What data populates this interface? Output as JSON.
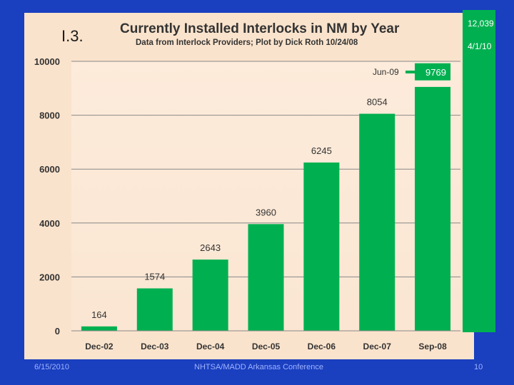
{
  "slide": {
    "label": "I.3.",
    "footer_date": "6/15/2010",
    "footer_conference": "NHTSA/MADD Arkansas Conference",
    "footer_page": "10"
  },
  "annotations": {
    "top_value": "12,039",
    "top_date": "4/1/10",
    "jun09_label": "Jun-09",
    "jun09_value": "9769",
    "top_value_number": 12039,
    "jun09_number": 9769
  },
  "colors": {
    "bar": "#00b050",
    "panel": "#fae3cc",
    "slide_bg": "#1a3fbf",
    "arrow": "#00b050"
  },
  "chart_data": {
    "type": "bar",
    "title": "Currently Installed Interlocks in NM by Year",
    "subtitle": "Data from Interlock Providers; Plot by Dick Roth 10/24/08",
    "categories": [
      "Dec-02",
      "Dec-03",
      "Dec-04",
      "Dec-05",
      "Dec-06",
      "Dec-07",
      "Sep-08"
    ],
    "values": [
      164,
      1574,
      2643,
      3960,
      6245,
      8054,
      9050
    ],
    "data_labels": [
      "164",
      "1574",
      "2643",
      "3960",
      "6245",
      "8054",
      ""
    ],
    "ylim": [
      0,
      10000
    ],
    "yticks": [
      0,
      2000,
      4000,
      6000,
      8000,
      10000
    ],
    "xlabel": "",
    "ylabel": "",
    "grid": true
  }
}
